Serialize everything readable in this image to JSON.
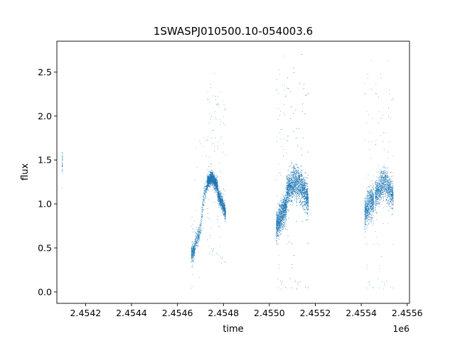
{
  "chart_data": {
    "type": "scatter",
    "title": "1SWASPJ010500.10-054003.6",
    "xlabel": "time",
    "ylabel": "flux",
    "x_offset_label": "1e6",
    "xlim": [
      2454075,
      2455610
    ],
    "ylim": [
      -0.13,
      2.85
    ],
    "x_ticks": [
      2454200,
      2454400,
      2454600,
      2454800,
      2455000,
      2455200,
      2455400,
      2455600
    ],
    "x_tick_labels": [
      "2.4542",
      "2.4544",
      "2.4546",
      "2.4548",
      "2.4550",
      "2.4552",
      "2.4554",
      "2.4556"
    ],
    "y_ticks": [
      0.0,
      0.5,
      1.0,
      1.5,
      2.0,
      2.5
    ],
    "y_tick_labels": [
      "0.0",
      "0.5",
      "1.0",
      "1.5",
      "2.0",
      "2.5"
    ],
    "grid": false,
    "color": "#1f77b4",
    "clusters": [
      {
        "x_range": [
          2454098,
          2454100
        ],
        "points": 40,
        "trend": [
          [
            2454098,
            1.45
          ],
          [
            2454100,
            1.45
          ]
        ],
        "spread": 0.2,
        "y_range": [
          0.85,
          2.0
        ]
      },
      {
        "x_range": [
          2454660,
          2454675
        ],
        "points": 300,
        "trend": [
          [
            2454660,
            0.42
          ],
          [
            2454675,
            0.48
          ]
        ],
        "spread": 0.1,
        "y_range": [
          0.0,
          0.95
        ]
      },
      {
        "x_range": [
          2454675,
          2454730
        ],
        "points": 500,
        "trend": [
          [
            2454675,
            0.55
          ],
          [
            2454700,
            0.7
          ],
          [
            2454715,
            1.1
          ],
          [
            2454730,
            1.22
          ]
        ],
        "spread": 0.12,
        "y_range": [
          0.1,
          1.8
        ]
      },
      {
        "x_range": [
          2454730,
          2454775
        ],
        "points": 1800,
        "trend": [
          [
            2454730,
            1.25
          ],
          [
            2454750,
            1.3
          ],
          [
            2454775,
            1.2
          ]
        ],
        "spread": 0.09,
        "y_range": [
          0.4,
          2.5
        ]
      },
      {
        "x_range": [
          2454775,
          2454810
        ],
        "points": 900,
        "trend": [
          [
            2454775,
            1.12
          ],
          [
            2454795,
            1.0
          ],
          [
            2454810,
            0.9
          ]
        ],
        "spread": 0.1,
        "y_range": [
          0.3,
          2.45
        ]
      },
      {
        "x_range": [
          2455030,
          2455075
        ],
        "points": 1400,
        "trend": [
          [
            2455030,
            0.75
          ],
          [
            2455050,
            0.85
          ],
          [
            2455075,
            1.0
          ]
        ],
        "spread": 0.2,
        "y_range": [
          0.0,
          2.7
        ]
      },
      {
        "x_range": [
          2455075,
          2455170
        ],
        "points": 3600,
        "trend": [
          [
            2455075,
            1.15
          ],
          [
            2455110,
            1.25
          ],
          [
            2455140,
            1.2
          ],
          [
            2455170,
            1.05
          ]
        ],
        "spread": 0.22,
        "y_range": [
          0.0,
          2.72
        ]
      },
      {
        "x_range": [
          2455415,
          2455455
        ],
        "points": 900,
        "trend": [
          [
            2455415,
            0.9
          ],
          [
            2455435,
            1.0
          ],
          [
            2455455,
            1.05
          ]
        ],
        "spread": 0.22,
        "y_range": [
          0.0,
          2.65
        ]
      },
      {
        "x_range": [
          2455460,
          2455540
        ],
        "points": 1500,
        "trend": [
          [
            2455460,
            1.1
          ],
          [
            2455500,
            1.25
          ],
          [
            2455540,
            1.1
          ]
        ],
        "spread": 0.2,
        "y_range": [
          0.0,
          2.65
        ]
      }
    ]
  }
}
